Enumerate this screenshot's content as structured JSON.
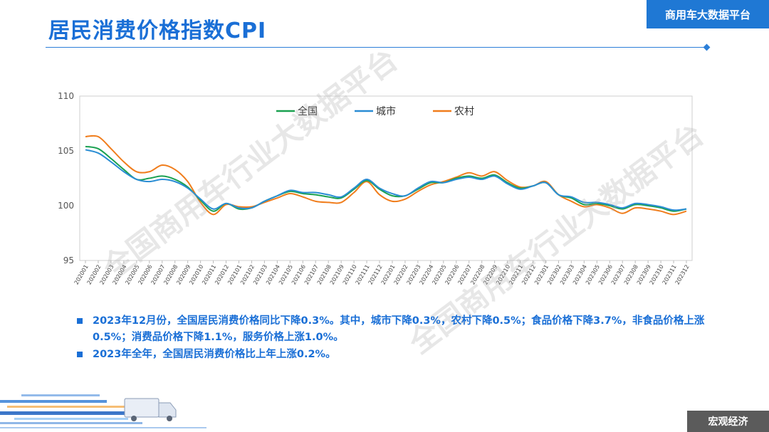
{
  "header": {
    "title": "居民消费价格指数CPI",
    "brand": "商用车大数据平台"
  },
  "watermark": "全国商用车行业大数据平台",
  "chart_data": {
    "type": "line",
    "ylim": [
      95,
      110
    ],
    "yticks": [
      95,
      100,
      105,
      110
    ],
    "grid": false,
    "legend_position": "top-center",
    "x": [
      "202001",
      "202002",
      "202003",
      "202004",
      "202005",
      "202006",
      "202007",
      "202008",
      "202009",
      "202010",
      "202011",
      "202012",
      "202101",
      "202102",
      "202103",
      "202104",
      "202105",
      "202106",
      "202107",
      "202108",
      "202109",
      "202110",
      "202111",
      "202112",
      "202201",
      "202202",
      "202203",
      "202204",
      "202205",
      "202206",
      "202207",
      "202208",
      "202209",
      "202210",
      "202211",
      "202212",
      "202301",
      "202302",
      "202303",
      "202304",
      "202305",
      "202306",
      "202307",
      "202308",
      "202309",
      "202310",
      "202311",
      "202312"
    ],
    "series": [
      {
        "name": "全国",
        "color": "#1aa150",
        "values": [
          105.4,
          105.2,
          104.3,
          103.3,
          102.4,
          102.5,
          102.7,
          102.4,
          101.7,
          100.5,
          99.5,
          100.2,
          99.7,
          99.8,
          100.4,
          100.9,
          101.3,
          101.1,
          101.0,
          100.8,
          100.7,
          101.5,
          102.3,
          101.5,
          100.9,
          100.9,
          101.5,
          102.1,
          102.1,
          102.5,
          102.7,
          102.5,
          102.8,
          102.1,
          101.6,
          101.8,
          102.1,
          101.0,
          100.7,
          100.1,
          100.2,
          100.0,
          99.7,
          100.1,
          100.0,
          99.8,
          99.5,
          99.7
        ]
      },
      {
        "name": "城市",
        "color": "#2a8dd4",
        "values": [
          105.1,
          104.8,
          104.0,
          103.1,
          102.4,
          102.2,
          102.4,
          102.2,
          101.6,
          100.6,
          99.7,
          100.2,
          99.8,
          99.8,
          100.4,
          100.9,
          101.4,
          101.2,
          101.2,
          101.0,
          100.8,
          101.6,
          102.4,
          101.6,
          101.1,
          100.9,
          101.6,
          102.2,
          102.1,
          102.4,
          102.6,
          102.4,
          102.7,
          102.0,
          101.5,
          101.8,
          102.1,
          101.0,
          100.8,
          100.3,
          100.3,
          100.1,
          99.8,
          100.2,
          100.1,
          99.9,
          99.6,
          99.7
        ]
      },
      {
        "name": "农村",
        "color": "#f07d1c",
        "values": [
          106.3,
          106.3,
          105.2,
          104.0,
          103.1,
          103.1,
          103.7,
          103.3,
          102.2,
          100.3,
          99.2,
          100.1,
          99.9,
          99.9,
          100.3,
          100.7,
          101.1,
          100.8,
          100.4,
          100.3,
          100.3,
          101.2,
          102.2,
          101.0,
          100.4,
          100.6,
          101.3,
          101.9,
          102.2,
          102.6,
          103.0,
          102.7,
          103.1,
          102.3,
          101.7,
          101.8,
          102.2,
          101.0,
          100.4,
          99.9,
          100.1,
          99.8,
          99.3,
          99.8,
          99.7,
          99.5,
          99.2,
          99.5
        ]
      }
    ]
  },
  "notes": [
    "2023年12月份，全国居民消费价格同比下降0.3%。其中，城市下降0.3%，农村下降0.5%；食品价格下降3.7%，非食品价格上涨0.5%；消费品价格下降1.1%，服务价格上涨1.0%。",
    "2023年全年，全国居民消费价格比上年上涨0.2%。"
  ],
  "footer": {
    "tag": "宏观经济"
  }
}
